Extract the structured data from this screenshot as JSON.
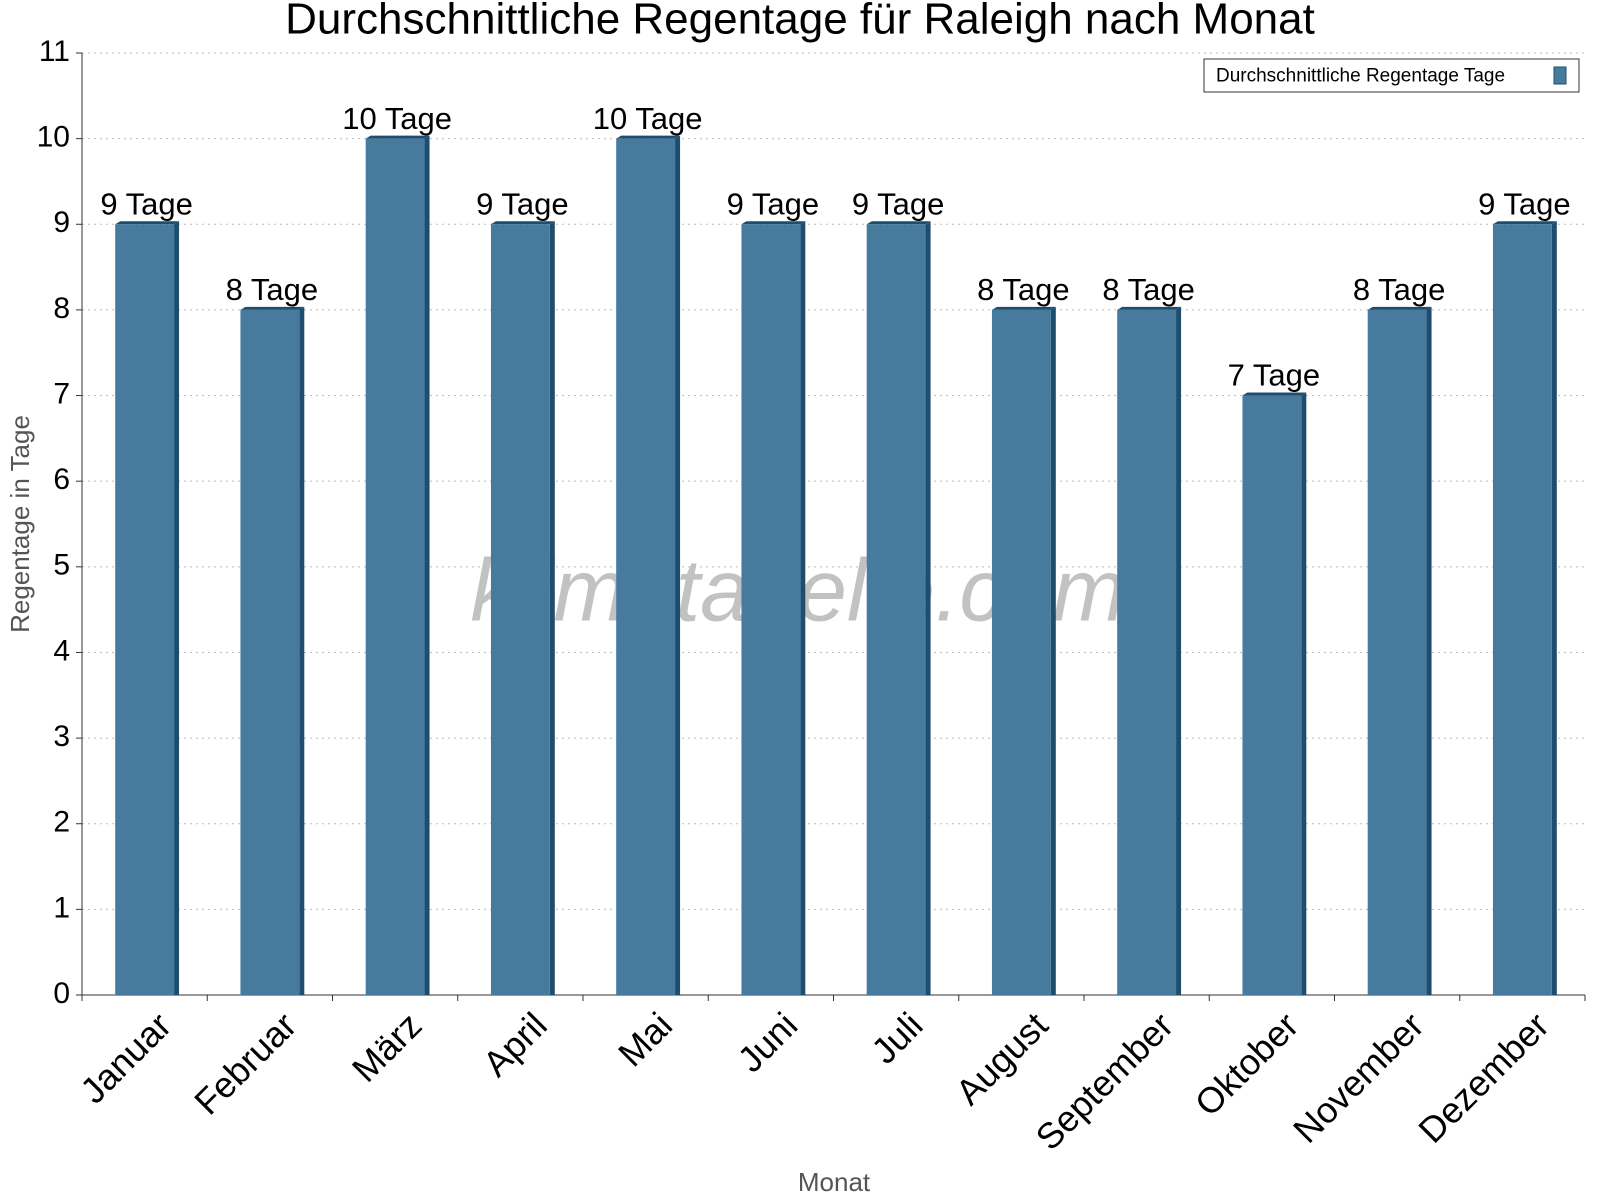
{
  "chart_data": {
    "type": "bar",
    "title": "Durchschnittliche Regentage für Raleigh nach Monat",
    "x_label": "Monat",
    "y_label": "Regentage in Tage",
    "watermark": "klimatabelle.com",
    "categories": [
      "Januar",
      "Februar",
      "März",
      "April",
      "Mai",
      "Juni",
      "Juli",
      "August",
      "September",
      "Oktober",
      "November",
      "Dezember"
    ],
    "series": [
      {
        "name": "Durchschnittliche Regentage Tage",
        "color": "#467b9e",
        "values": [
          9,
          8,
          10,
          9,
          10,
          9,
          9,
          8,
          8,
          7,
          8,
          9
        ],
        "value_labels": [
          "9 Tage",
          "8 Tage",
          "10 Tage",
          "9 Tage",
          "10 Tage",
          "9 Tage",
          "9 Tage",
          "8 Tage",
          "8 Tage",
          "7 Tage",
          "8 Tage",
          "9 Tage"
        ]
      }
    ],
    "ylim": [
      0,
      11
    ],
    "yticks": [
      0,
      1,
      2,
      3,
      4,
      5,
      6,
      7,
      8,
      9,
      10,
      11
    ],
    "grid": true,
    "legend": "top-right"
  }
}
